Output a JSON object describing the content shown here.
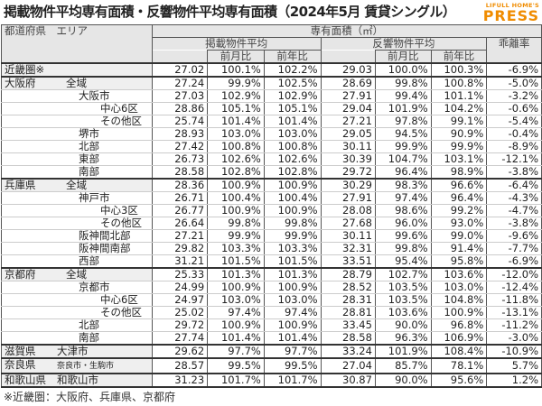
{
  "title": "掲載物件平均専有面積・反響物件平均専有面積（2024年5月 賃貸シングル）",
  "logo": {
    "top": "LIFULL HOME'S",
    "main": "PRESS",
    "color": "#f08c00"
  },
  "header": {
    "region": "都道府県　エリア",
    "area_group": "専有面積（㎡）",
    "listed": "掲載物件平均",
    "response": "反響物件平均",
    "gap": "乖離率",
    "mom": "前月比",
    "yoy": "前年比"
  },
  "rows": [
    {
      "pref": "近畿圏※",
      "area": "",
      "level": 0,
      "group": true,
      "v": [
        "27.02",
        "100.1%",
        "102.2%",
        "29.03",
        "100.0%",
        "100.3%",
        "-6.9%"
      ]
    },
    {
      "pref": "大阪府",
      "area": "全域",
      "level": 0,
      "group": true,
      "v": [
        "27.24",
        "99.9%",
        "102.5%",
        "28.69",
        "99.8%",
        "100.8%",
        "-5.0%"
      ]
    },
    {
      "pref": "",
      "area": "大阪市",
      "level": 1,
      "v": [
        "27.03",
        "102.9%",
        "102.9%",
        "27.91",
        "99.4%",
        "101.1%",
        "-3.2%"
      ]
    },
    {
      "pref": "",
      "area": "中心6区",
      "level": 2,
      "v": [
        "28.86",
        "105.1%",
        "105.1%",
        "29.04",
        "101.9%",
        "104.2%",
        "-0.6%"
      ]
    },
    {
      "pref": "",
      "area": "その他区",
      "level": 2,
      "v": [
        "25.74",
        "101.4%",
        "101.4%",
        "27.21",
        "97.8%",
        "99.1%",
        "-5.4%"
      ]
    },
    {
      "pref": "",
      "area": "堺市",
      "level": 1,
      "v": [
        "28.93",
        "103.0%",
        "103.0%",
        "29.05",
        "94.5%",
        "90.9%",
        "-0.4%"
      ]
    },
    {
      "pref": "",
      "area": "北部",
      "level": 1,
      "v": [
        "27.42",
        "100.8%",
        "100.8%",
        "30.11",
        "99.9%",
        "99.9%",
        "-8.9%"
      ]
    },
    {
      "pref": "",
      "area": "東部",
      "level": 1,
      "v": [
        "26.73",
        "102.6%",
        "102.6%",
        "30.39",
        "104.7%",
        "103.1%",
        "-12.1%"
      ]
    },
    {
      "pref": "",
      "area": "南部",
      "level": 1,
      "v": [
        "28.58",
        "102.8%",
        "102.8%",
        "29.72",
        "96.4%",
        "98.9%",
        "-3.8%"
      ]
    },
    {
      "pref": "兵庫県",
      "area": "全域",
      "level": 0,
      "group": true,
      "v": [
        "28.36",
        "100.9%",
        "100.9%",
        "30.29",
        "98.3%",
        "96.6%",
        "-6.4%"
      ]
    },
    {
      "pref": "",
      "area": "神戸市",
      "level": 1,
      "v": [
        "26.71",
        "100.4%",
        "100.4%",
        "27.91",
        "97.4%",
        "96.4%",
        "-4.3%"
      ]
    },
    {
      "pref": "",
      "area": "中心3区",
      "level": 2,
      "v": [
        "26.77",
        "100.9%",
        "100.9%",
        "28.08",
        "98.6%",
        "99.2%",
        "-4.7%"
      ]
    },
    {
      "pref": "",
      "area": "その他区",
      "level": 2,
      "v": [
        "26.64",
        "99.8%",
        "99.8%",
        "27.68",
        "96.0%",
        "93.0%",
        "-3.8%"
      ]
    },
    {
      "pref": "",
      "area": "阪神間北部",
      "level": 1,
      "v": [
        "27.21",
        "99.9%",
        "99.9%",
        "30.11",
        "99.6%",
        "99.0%",
        "-9.6%"
      ]
    },
    {
      "pref": "",
      "area": "阪神間南部",
      "level": 1,
      "v": [
        "29.82",
        "103.3%",
        "103.3%",
        "32.31",
        "99.8%",
        "91.4%",
        "-7.7%"
      ]
    },
    {
      "pref": "",
      "area": "西部",
      "level": 1,
      "v": [
        "31.21",
        "101.5%",
        "101.5%",
        "33.51",
        "95.4%",
        "95.8%",
        "-6.9%"
      ]
    },
    {
      "pref": "京都府",
      "area": "全域",
      "level": 0,
      "group": true,
      "v": [
        "25.33",
        "101.3%",
        "101.3%",
        "28.79",
        "102.7%",
        "103.6%",
        "-12.0%"
      ]
    },
    {
      "pref": "",
      "area": "京都市",
      "level": 1,
      "v": [
        "24.99",
        "100.9%",
        "100.9%",
        "28.52",
        "103.5%",
        "103.0%",
        "-12.4%"
      ]
    },
    {
      "pref": "",
      "area": "中心6区",
      "level": 2,
      "v": [
        "24.97",
        "103.0%",
        "103.0%",
        "28.31",
        "103.5%",
        "104.8%",
        "-11.8%"
      ]
    },
    {
      "pref": "",
      "area": "その他区",
      "level": 2,
      "v": [
        "25.02",
        "97.4%",
        "97.4%",
        "28.81",
        "103.6%",
        "100.9%",
        "-13.1%"
      ]
    },
    {
      "pref": "",
      "area": "北部",
      "level": 1,
      "v": [
        "29.72",
        "100.9%",
        "100.9%",
        "33.45",
        "90.0%",
        "96.8%",
        "-11.2%"
      ]
    },
    {
      "pref": "",
      "area": "南部",
      "level": 1,
      "v": [
        "27.74",
        "101.4%",
        "101.4%",
        "28.58",
        "96.3%",
        "106.9%",
        "-3.0%"
      ]
    },
    {
      "pref": "滋賀県",
      "area": "大津市",
      "level": 1,
      "group": true,
      "v": [
        "29.62",
        "97.7%",
        "97.7%",
        "33.24",
        "101.9%",
        "108.4%",
        "-10.9%"
      ]
    },
    {
      "pref": "奈良県",
      "area": "奈良市・生駒市",
      "level": 1,
      "group": true,
      "small": true,
      "v": [
        "28.57",
        "99.5%",
        "99.5%",
        "27.04",
        "85.7%",
        "78.1%",
        "5.7%"
      ]
    },
    {
      "pref": "和歌山県",
      "area": "和歌山市",
      "level": 1,
      "group": true,
      "v": [
        "31.23",
        "101.7%",
        "101.7%",
        "30.87",
        "90.0%",
        "95.6%",
        "1.2%"
      ]
    }
  ],
  "note": "※近畿圏：大阪府、兵庫県、京都府"
}
